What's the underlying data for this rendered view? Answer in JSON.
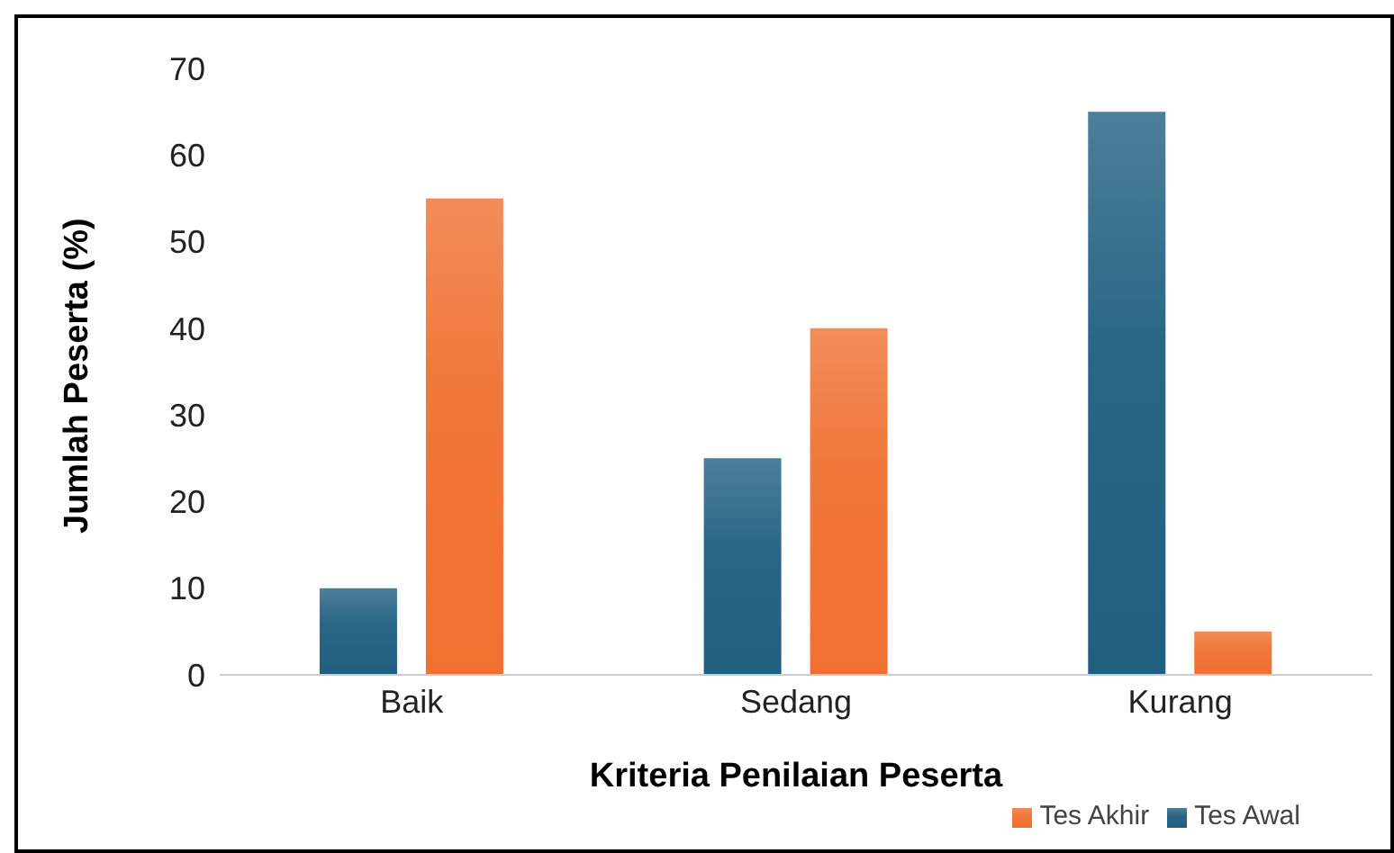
{
  "chart_data": {
    "type": "bar",
    "xlabel": "Kriteria Penilaian  Peserta",
    "ylabel": "Jumlah Peserta (%)",
    "categories": [
      "Baik",
      "Sedang",
      "Kurang"
    ],
    "series": [
      {
        "name": "Tes Awal",
        "color": "#1f5f80",
        "values": [
          10,
          25,
          65
        ]
      },
      {
        "name": "Tes Akhir",
        "color": "#f07030",
        "values": [
          55,
          40,
          5
        ]
      }
    ],
    "ylim": [
      0,
      70
    ],
    "yticks": [
      0,
      10,
      20,
      30,
      40,
      50,
      60,
      70
    ],
    "grid": false,
    "legend": "bottom right"
  }
}
